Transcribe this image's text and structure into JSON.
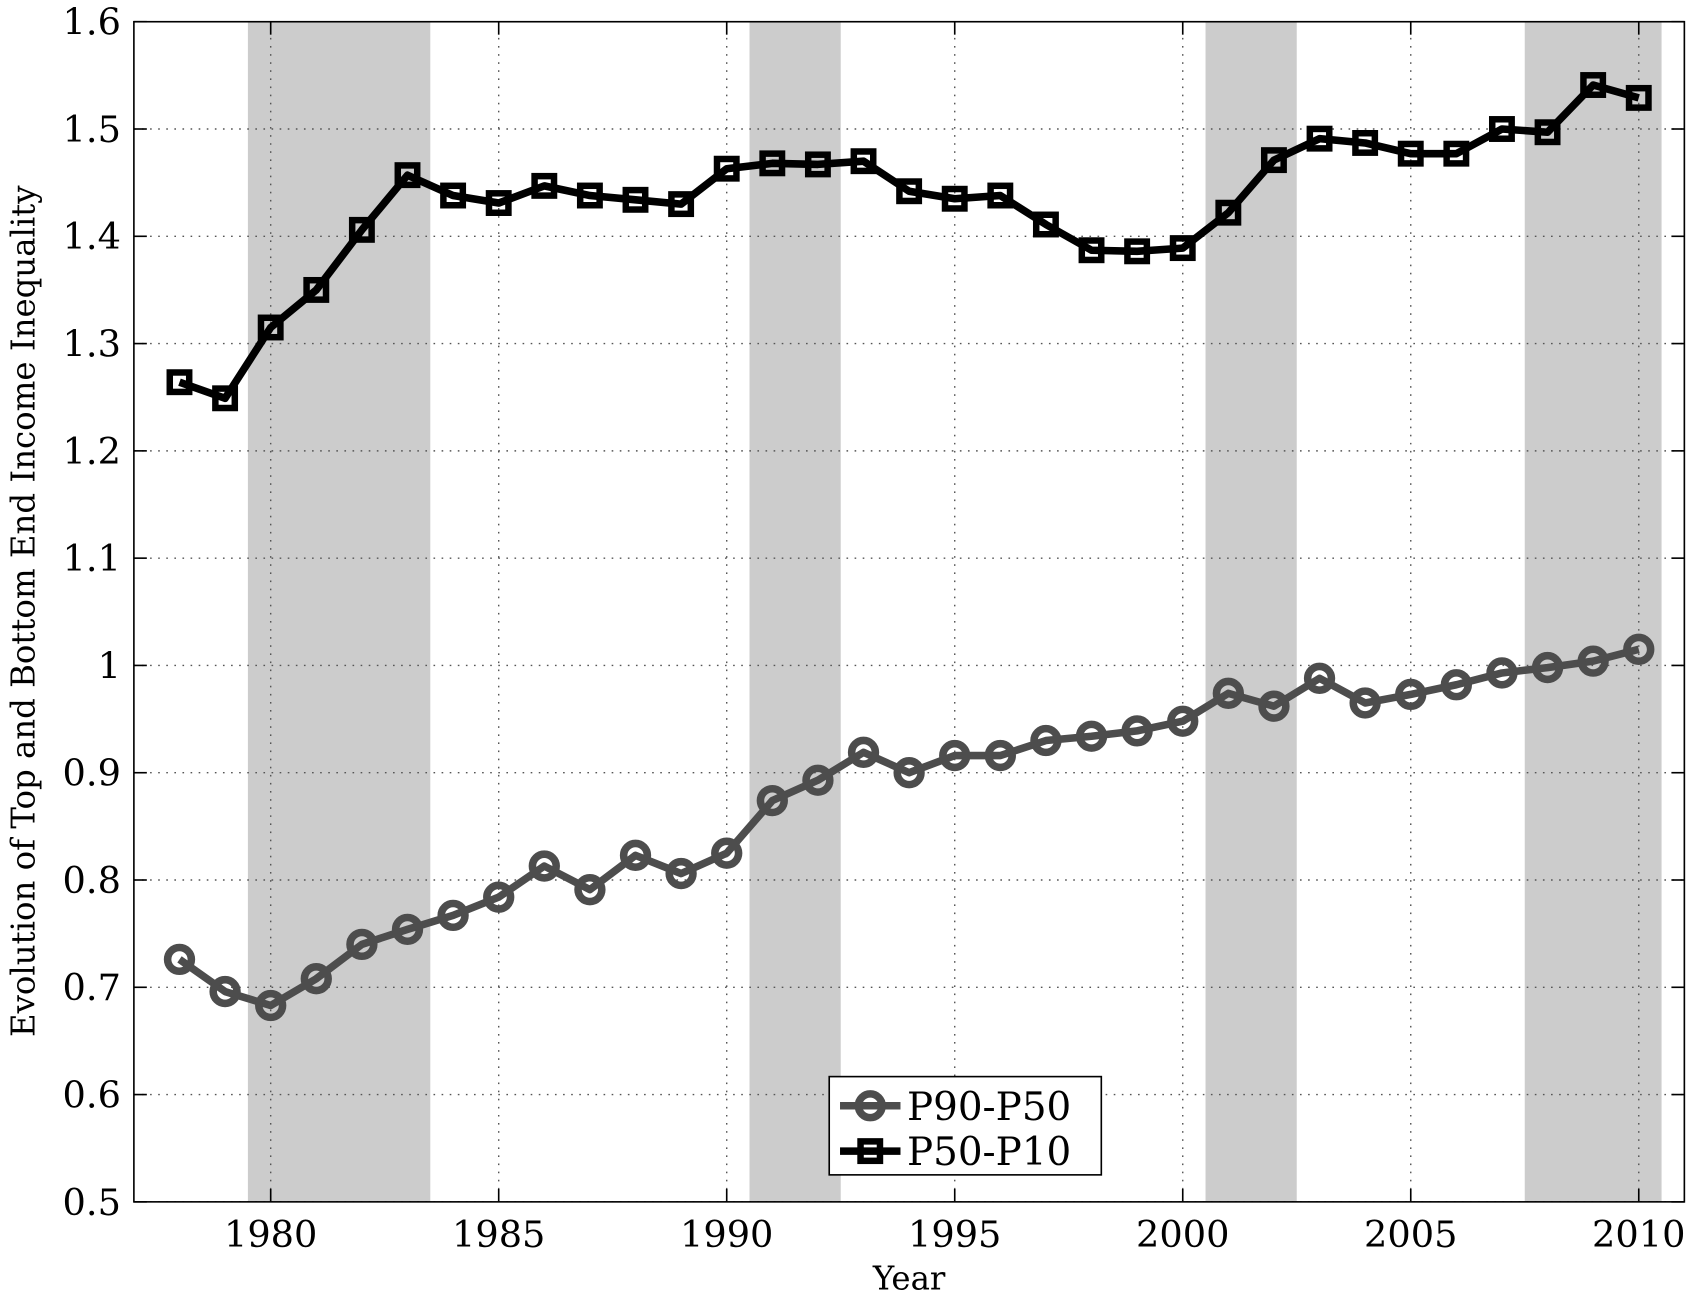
{
  "chart_data": {
    "type": "line",
    "title": "",
    "xlabel": "Year",
    "ylabel": "Evolution of Top and Bottom End Income Inequality",
    "xlim": [
      1977,
      2011
    ],
    "ylim": [
      0.5,
      1.6
    ],
    "xticks": [
      1980,
      1985,
      1990,
      1995,
      2000,
      2005,
      2010
    ],
    "xtick_labels": [
      "1980",
      "1985",
      "1990",
      "1995",
      "2000",
      "2005",
      "2010"
    ],
    "yticks": [
      0.5,
      0.6,
      0.7,
      0.8,
      0.9,
      1.0,
      1.1,
      1.2,
      1.3,
      1.4,
      1.5,
      1.6
    ],
    "ytick_labels": [
      "0.5",
      "0.6",
      "0.7",
      "0.8",
      "0.9",
      "1",
      "1.1",
      "1.2",
      "1.3",
      "1.4",
      "1.5",
      "1.6"
    ],
    "grid": true,
    "legend_position": "bottom-center",
    "recessions": [
      [
        1979.5,
        1983.5
      ],
      [
        1990.5,
        1992.5
      ],
      [
        2000.5,
        2002.5
      ],
      [
        2007.5,
        2010.5
      ]
    ],
    "x": [
      1978,
      1979,
      1980,
      1981,
      1982,
      1983,
      1984,
      1985,
      1986,
      1987,
      1988,
      1989,
      1990,
      1991,
      1992,
      1993,
      1994,
      1995,
      1996,
      1997,
      1998,
      1999,
      2000,
      2001,
      2002,
      2003,
      2004,
      2005,
      2006,
      2007,
      2008,
      2009,
      2010
    ],
    "series": [
      {
        "name": "P90-P50",
        "marker": "circle",
        "color": "#4d4d4d",
        "values": [
          0.726,
          0.696,
          0.683,
          0.708,
          0.74,
          0.754,
          0.767,
          0.784,
          0.813,
          0.791,
          0.823,
          0.806,
          0.825,
          0.874,
          0.893,
          0.919,
          0.9,
          0.916,
          0.916,
          0.93,
          0.934,
          0.939,
          0.948,
          0.974,
          0.962,
          0.988,
          0.965,
          0.973,
          0.982,
          0.993,
          0.998,
          1.004,
          1.015
        ]
      },
      {
        "name": "P50-P10",
        "marker": "square",
        "color": "#000000",
        "values": [
          1.264,
          1.249,
          1.315,
          1.35,
          1.406,
          1.457,
          1.438,
          1.431,
          1.447,
          1.438,
          1.434,
          1.43,
          1.463,
          1.468,
          1.467,
          1.47,
          1.442,
          1.435,
          1.438,
          1.411,
          1.387,
          1.386,
          1.389,
          1.422,
          1.471,
          1.491,
          1.487,
          1.477,
          1.477,
          1.5,
          1.497,
          1.541,
          1.529
        ]
      }
    ],
    "colors": {
      "recession": "#cccccc",
      "grid": "#555555"
    }
  }
}
